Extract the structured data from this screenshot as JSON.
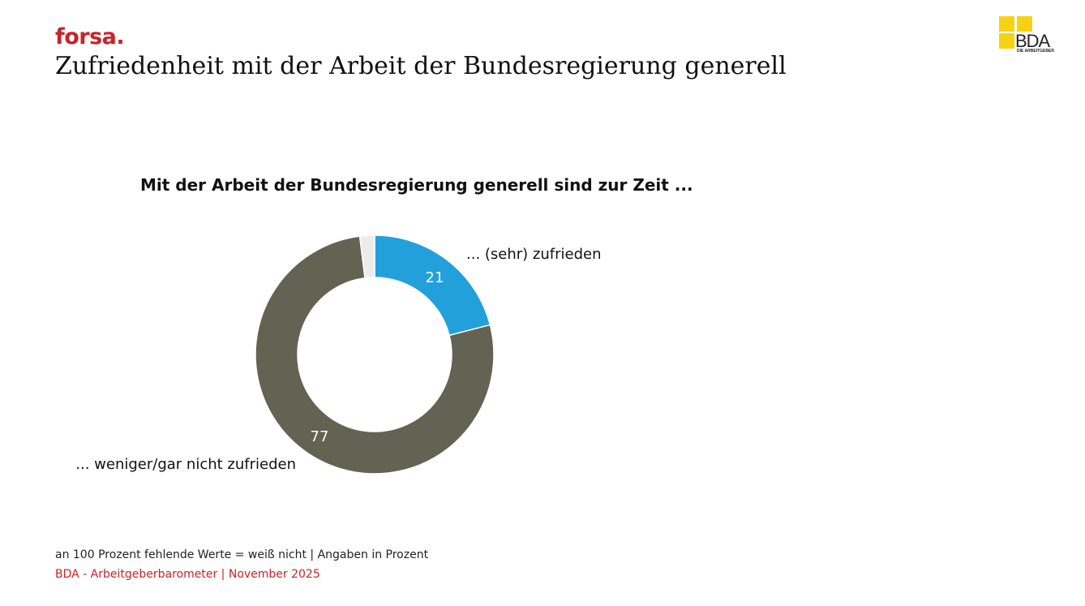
{
  "header": {
    "brand": "forsa.",
    "title": "Zufriedenheit mit der Arbeit der Bundesregierung generell"
  },
  "logo": {
    "text": "BDA",
    "subtitle": "DIE ARBEITGEBER",
    "color": "#f5d313"
  },
  "chart_data": {
    "type": "pie",
    "title": "Mit der Arbeit der Bundesregierung generell sind zur Zeit ...",
    "slices": [
      {
        "label": "... (sehr) zufrieden",
        "value": 21,
        "color": "#22a0dc",
        "display": "21"
      },
      {
        "label": "... weniger/gar nicht zufrieden",
        "value": 77,
        "color": "#646253",
        "display": "77"
      },
      {
        "label": "",
        "value": 2,
        "color": "#ececea",
        "display": ""
      }
    ]
  },
  "footer": {
    "note": "an 100 Prozent fehlende Werte = weiß nicht | Angaben in Prozent",
    "source": "BDA - Arbeitgeberbarometer | November 2025"
  },
  "colors": {
    "brand_red": "#c8232b"
  }
}
